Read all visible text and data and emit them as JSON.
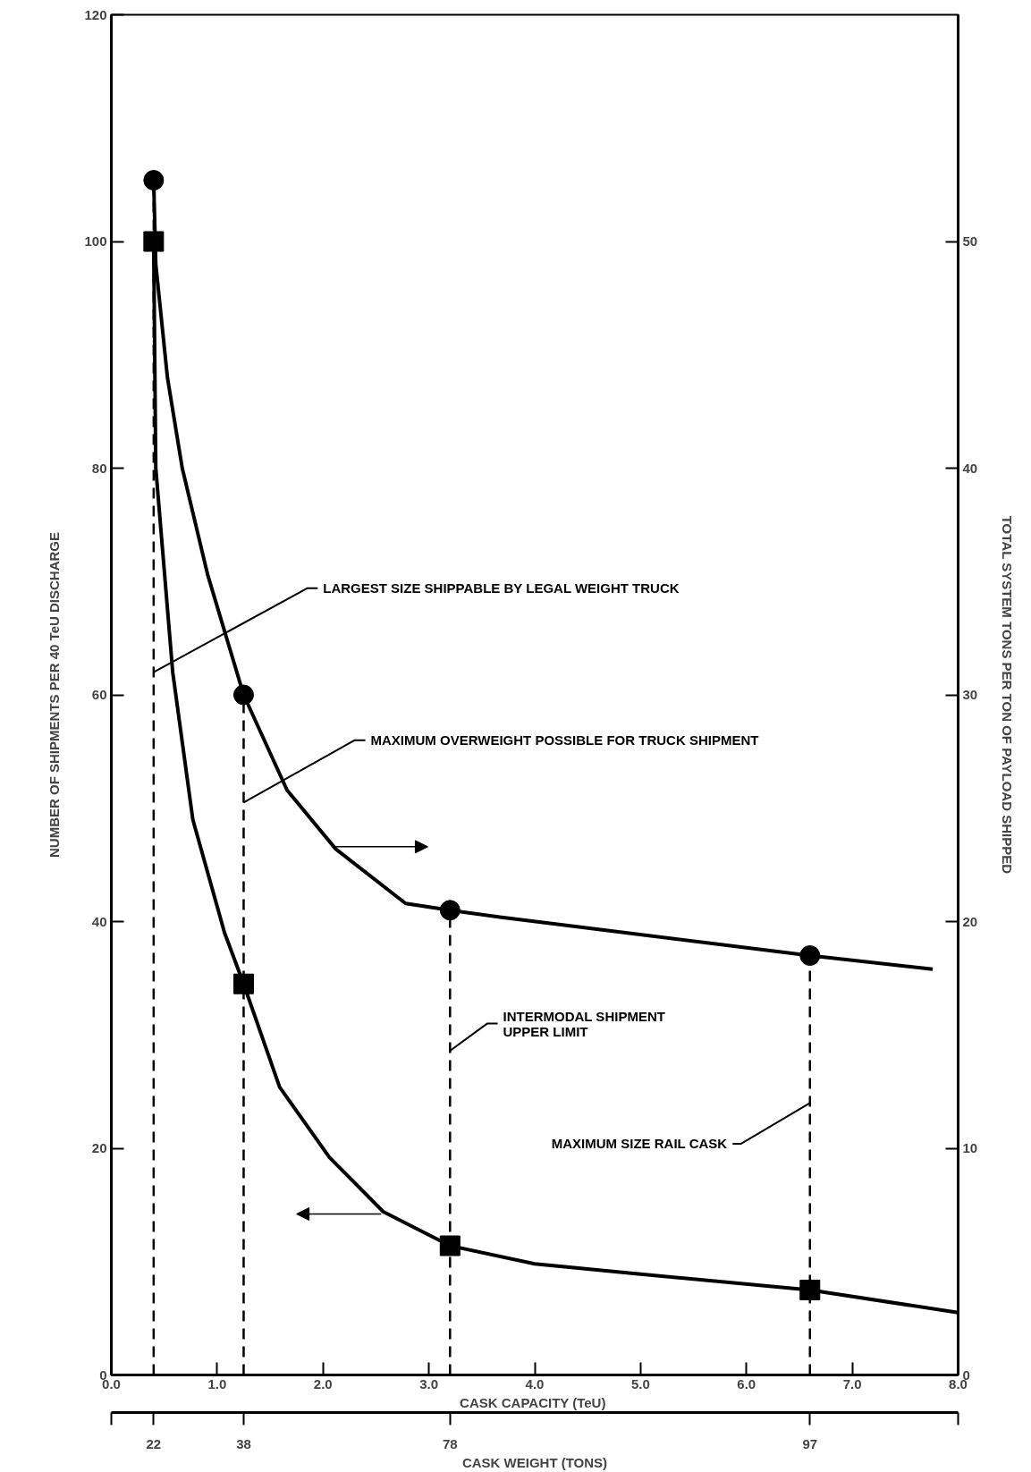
{
  "chart_data": {
    "type": "line",
    "xlabel": "CASK CAPACITY  (TeU)",
    "ylabel": "NUMBER OF SHIPMENTS PER 40 TeU DISCHARGE",
    "y2label": "TOTAL SYSTEM TONS PER TON OF PAYLOAD SHIPPED",
    "xlim": [
      0,
      8
    ],
    "xticks": [
      {
        "value": 0,
        "label": "0.0"
      },
      {
        "value": 1,
        "label": "1.0"
      },
      {
        "value": 2,
        "label": "2.0"
      },
      {
        "value": 3,
        "label": "3.0"
      },
      {
        "value": 4,
        "label": "4.0"
      },
      {
        "value": 5,
        "label": "5.0"
      },
      {
        "value": 6,
        "label": "6.0"
      },
      {
        "value": 7,
        "label": "7.0"
      },
      {
        "value": 8,
        "label": "8.0"
      }
    ],
    "annotations": [
      {
        "text": "22",
        "x": 0.4
      },
      {
        "text": "38",
        "x": 1.25
      },
      {
        "text": "78",
        "x": 3.2
      },
      {
        "text": "97",
        "x": 6.6
      },
      "CASK WEIGHT (TONS)"
    ],
    "ylim": [
      0,
      120
    ],
    "yticks": [
      0,
      20,
      40,
      60,
      80,
      100,
      120
    ],
    "y2lim": [
      0,
      60
    ],
    "y2ticks": [
      0,
      10,
      20,
      30,
      40,
      50
    ],
    "grid": false,
    "series": [
      {
        "color": "#000000",
        "marker": "none",
        "line_style": "solid",
        "x": [
          0.4,
          0.42,
          0.58,
          0.77,
          1.07,
          1.25,
          1.59,
          2.06,
          2.57,
          3.2,
          4,
          5,
          6.6,
          8
        ],
        "values": [
          100,
          80,
          62,
          49,
          39,
          34.5,
          25.4,
          19.2,
          14.4,
          11.4,
          9.8,
          8.9,
          7.5,
          5.5
        ]
      },
      {
        "type": "scatter",
        "color": "#000000",
        "marker": "square",
        "x": [
          0.4,
          1.25,
          3.2,
          6.6
        ],
        "values": [
          100,
          34.5,
          11.4,
          7.5
        ]
      },
      {
        "axis": "y2",
        "color": "#000000",
        "marker": "none",
        "line_style": "solid",
        "x": [
          0.4,
          0.42,
          0.53,
          0.67,
          0.91,
          1.25,
          1.66,
          2.12,
          2.78,
          3.2,
          3.67,
          6.6,
          7.76
        ],
        "values": [
          52.7,
          49,
          44,
          40,
          35.3,
          30,
          25.8,
          23.2,
          20.8,
          20.5,
          20.2,
          18.5,
          17.9
        ]
      },
      {
        "type": "scatter",
        "axis": "y2",
        "color": "#000000",
        "marker": "circle",
        "x": [
          0.4,
          1.25,
          3.2,
          6.6
        ],
        "values": [
          52.7,
          30,
          20.5,
          18.5
        ]
      }
    ],
    "ref_lines": [
      {
        "axis": "x",
        "value": 0.4,
        "label": "LARGEST SIZE SHIPPABLE BY LEGAL WEIGHT TRUCK",
        "color": "#000000",
        "line_style": "dashed"
      },
      {
        "axis": "x",
        "value": 1.25,
        "label": "MAXIMUM OVERWEIGHT POSSIBLE FOR TRUCK SHIPMENT",
        "color": "#000000",
        "line_style": "dashed"
      },
      {
        "axis": "x",
        "value": 3.2,
        "label": "INTERMODAL SHIPMENT\nUPPER LIMIT",
        "color": "#000000",
        "line_style": "dashed"
      },
      {
        "axis": "x",
        "value": 6.6,
        "label": "MAXIMUM SIZE RAIL CASK",
        "color": "#000000",
        "line_style": "dashed"
      }
    ]
  }
}
